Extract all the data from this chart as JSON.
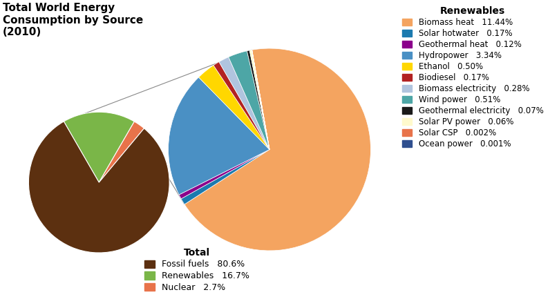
{
  "title": "Total World Energy\nConsumption by Source\n(2010)",
  "total_labels": [
    "Fossil fuels",
    "Renewables",
    "Nuclear"
  ],
  "total_values": [
    80.6,
    16.7,
    2.7
  ],
  "total_colors": [
    "#5C3010",
    "#7AB648",
    "#E8734A"
  ],
  "renewables_labels": [
    "Biomass heat",
    "Solar hotwater",
    "Geothermal heat",
    "Hydropower",
    "Ethanol",
    "Biodiesel",
    "Biomass electricity",
    "Wind power",
    "Geothermal electricity",
    "Solar PV power",
    "Solar CSP",
    "Ocean power"
  ],
  "renewables_values": [
    11.44,
    0.17,
    0.12,
    3.34,
    0.5,
    0.17,
    0.28,
    0.51,
    0.07,
    0.06,
    0.002,
    0.001
  ],
  "renewables_colors": [
    "#F4A460",
    "#1B7AAF",
    "#8B008B",
    "#4A90C4",
    "#FFD700",
    "#B22222",
    "#B0C4DE",
    "#4DA6A6",
    "#1A1A1A",
    "#FFFACD",
    "#E8734A",
    "#2F4F8F"
  ],
  "renewables_pct_labels": [
    "11.44%",
    "0.17%",
    "0.12%",
    "3.34%",
    "0.50%",
    "0.17%",
    "0.28%",
    "0.51%",
    "0.07%",
    "0.06%",
    "0.002%",
    "0.001%"
  ],
  "total_pct_labels": [
    "80.6%",
    "16.7%",
    "2.7%"
  ],
  "legend_title_renewables": "Renewables",
  "legend_title_total": "Total",
  "background_color": "#ffffff"
}
